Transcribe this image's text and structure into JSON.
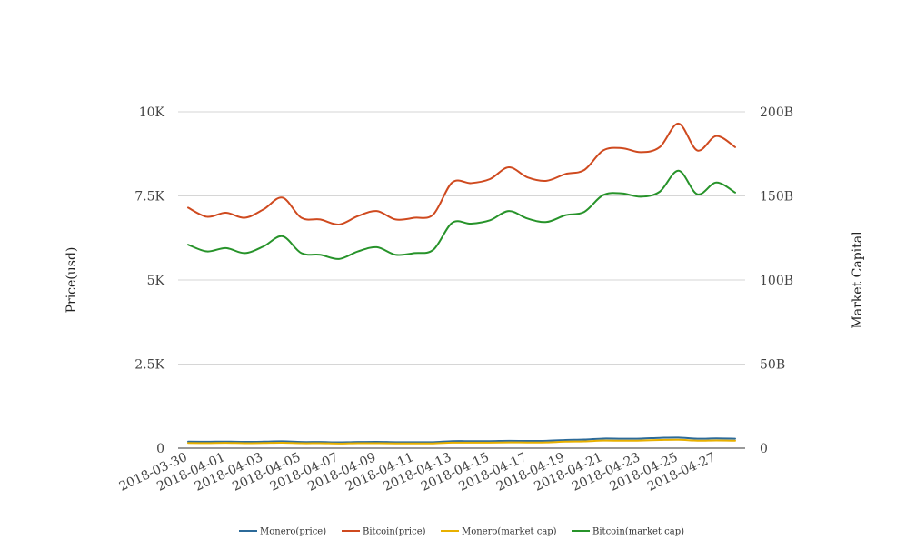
{
  "chart_data": {
    "type": "line",
    "y_left": {
      "label": "Price(usd)",
      "range": [
        0,
        10000
      ],
      "ticks": [
        0,
        2500,
        5000,
        7500,
        10000
      ],
      "tick_labels": [
        "0",
        "2.5K",
        "5K",
        "7.5K",
        "10K"
      ]
    },
    "y_right": {
      "label": "Market Capital",
      "range": [
        0,
        200000000000
      ],
      "ticks": [
        0,
        50000000000,
        100000000000,
        150000000000,
        200000000000
      ],
      "tick_labels": [
        "0",
        "50B",
        "100B",
        "150B",
        "200B"
      ]
    },
    "x": [
      "2018-03-30",
      "2018-03-31",
      "2018-04-01",
      "2018-04-02",
      "2018-04-03",
      "2018-04-04",
      "2018-04-05",
      "2018-04-06",
      "2018-04-07",
      "2018-04-08",
      "2018-04-09",
      "2018-04-10",
      "2018-04-11",
      "2018-04-12",
      "2018-04-13",
      "2018-04-14",
      "2018-04-15",
      "2018-04-16",
      "2018-04-17",
      "2018-04-18",
      "2018-04-19",
      "2018-04-20",
      "2018-04-21",
      "2018-04-22",
      "2018-04-23",
      "2018-04-24",
      "2018-04-25",
      "2018-04-26",
      "2018-04-27",
      "2018-04-28"
    ],
    "x_tick_labels": [
      "2018-03-30",
      "2018-04-01",
      "2018-04-03",
      "2018-04-05",
      "2018-04-07",
      "2018-04-09",
      "2018-04-11",
      "2018-04-13",
      "2018-04-15",
      "2018-04-17",
      "2018-04-19",
      "2018-04-21",
      "2018-04-23",
      "2018-04-25",
      "2018-04-27"
    ],
    "grid": true,
    "legend_position": "bottom",
    "series": [
      {
        "name": "Monero(price)",
        "axis": "left",
        "color": "#2c6a99",
        "values": [
          195,
          192,
          197,
          190,
          195,
          205,
          185,
          185,
          175,
          185,
          190,
          180,
          180,
          180,
          210,
          210,
          210,
          220,
          215,
          220,
          245,
          255,
          285,
          280,
          285,
          305,
          315,
          280,
          290,
          280
        ]
      },
      {
        "name": "Bitcoin(price)",
        "axis": "left",
        "color": "#cf4a1f",
        "values": [
          7150,
          6880,
          7000,
          6850,
          7100,
          7450,
          6850,
          6800,
          6650,
          6900,
          7050,
          6800,
          6850,
          6950,
          7900,
          7880,
          8000,
          8350,
          8050,
          7950,
          8150,
          8270,
          8850,
          8920,
          8800,
          8950,
          9650,
          8850,
          9280,
          8950
        ]
      },
      {
        "name": "Monero(market cap)",
        "axis": "right",
        "color": "#e8b000",
        "values": [
          3100000000,
          3050000000,
          3150000000,
          3000000000,
          3100000000,
          3250000000,
          2950000000,
          2950000000,
          2800000000,
          2950000000,
          3000000000,
          2850000000,
          2850000000,
          2850000000,
          3300000000,
          3300000000,
          3300000000,
          3450000000,
          3400000000,
          3450000000,
          3900000000,
          4050000000,
          4500000000,
          4450000000,
          4550000000,
          4850000000,
          5000000000,
          4450000000,
          4600000000,
          4450000000
        ]
      },
      {
        "name": "Bitcoin(market cap)",
        "axis": "right",
        "color": "#27932a",
        "values": [
          121000000000,
          117000000000,
          119000000000,
          116000000000,
          120000000000,
          126000000000,
          116000000000,
          115000000000,
          112500000000,
          117000000000,
          119500000000,
          115000000000,
          116000000000,
          118000000000,
          134000000000,
          133500000000,
          135500000000,
          141000000000,
          136500000000,
          134500000000,
          138500000000,
          140500000000,
          150500000000,
          151500000000,
          149500000000,
          152500000000,
          165000000000,
          151000000000,
          158000000000,
          152000000000
        ]
      }
    ]
  }
}
